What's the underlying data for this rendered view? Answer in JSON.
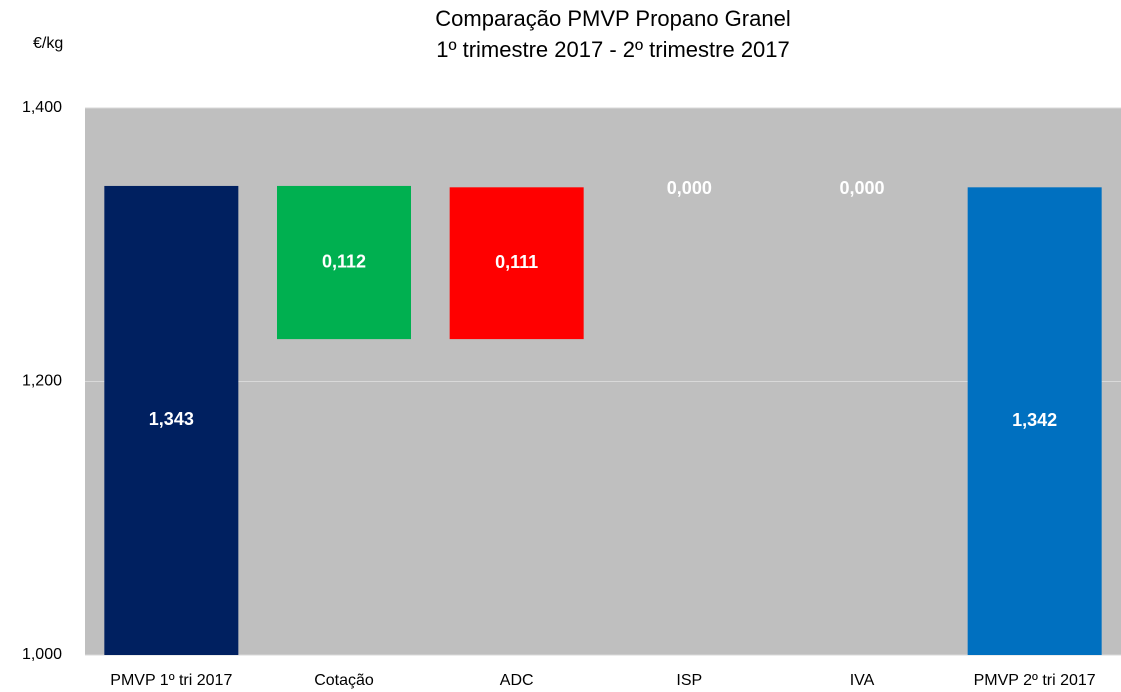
{
  "chart_data": {
    "type": "waterfall",
    "title": [
      "Comparação PMVP Propano Granel",
      "1º trimestre 2017 - 2º trimestre 2017"
    ],
    "y_axis_label": "€/kg",
    "categories": [
      "PMVP 1º tri 2017",
      "Cotação",
      "ADC",
      "ISP",
      "IVA",
      "PMVP 2º tri 2017"
    ],
    "values": [
      1.343,
      -0.112,
      0.111,
      0,
      0,
      1.342
    ],
    "value_labels": [
      "1,343",
      "0,112",
      "0,111",
      "0,000",
      "0,000",
      "1,342"
    ],
    "colors": [
      "#002060",
      "#00b050",
      "#ff0000",
      "#ff0000",
      "#00b050",
      "#0070c0"
    ],
    "ylim": [
      1.0,
      1.4
    ],
    "yticks": [
      {
        "value": 1.0,
        "label": "1,000"
      },
      {
        "value": 1.2,
        "label": "1,200"
      },
      {
        "value": 1.4,
        "label": "1,400"
      }
    ],
    "grid": true
  }
}
